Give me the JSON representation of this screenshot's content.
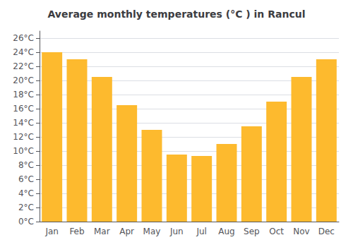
{
  "chart_data": {
    "type": "bar",
    "title": "Average monthly temperatures (°C ) in Rancul",
    "categories": [
      "Jan",
      "Feb",
      "Mar",
      "Apr",
      "May",
      "Jun",
      "Jul",
      "Aug",
      "Sep",
      "Oct",
      "Nov",
      "Dec"
    ],
    "values": [
      24.0,
      23.0,
      20.5,
      16.5,
      13.0,
      9.5,
      9.3,
      11.0,
      13.5,
      17.0,
      20.5,
      23.0
    ],
    "color": "#FDBA2E",
    "ylim": [
      0,
      27
    ],
    "yticks": [
      {
        "value": 0,
        "label": "0°C"
      },
      {
        "value": 2,
        "label": "2°C"
      },
      {
        "value": 4,
        "label": "4°C"
      },
      {
        "value": 6,
        "label": "6°C"
      },
      {
        "value": 8,
        "label": "8°C"
      },
      {
        "value": 10,
        "label": "10°C"
      },
      {
        "value": 12,
        "label": "12°C"
      },
      {
        "value": 14,
        "label": "14°C"
      },
      {
        "value": 16,
        "label": "16°C"
      },
      {
        "value": 18,
        "label": "18°C"
      },
      {
        "value": 20,
        "label": "20°C"
      },
      {
        "value": 22,
        "label": "22°C"
      },
      {
        "value": 24,
        "label": "24°C"
      },
      {
        "value": 26,
        "label": "26°C"
      }
    ],
    "grid": true
  }
}
